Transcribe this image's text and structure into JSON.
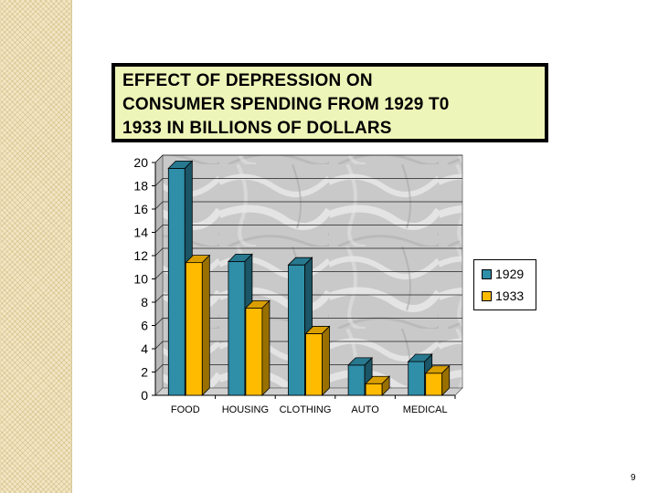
{
  "slide": {
    "page_number": "9"
  },
  "chart_data": {
    "type": "bar",
    "title_lines": [
      "EFFECT OF DEPRESSION ON",
      "CONSUMER SPENDING FROM 1929 T0",
      "1933 IN BILLIONS OF DOLLARS"
    ],
    "categories": [
      "FOOD",
      "HOUSING",
      "CLOTHING",
      "AUTO",
      "MEDICAL"
    ],
    "series": [
      {
        "name": "1929",
        "values": [
          19.5,
          11.5,
          11.2,
          2.6,
          2.9
        ],
        "color": "#2f8ea8"
      },
      {
        "name": "1933",
        "values": [
          11.4,
          7.5,
          5.3,
          1.0,
          1.9
        ],
        "color": "#ffbb00"
      }
    ],
    "ylim": [
      0,
      20
    ],
    "yticks": [
      0,
      2,
      4,
      6,
      8,
      10,
      12,
      14,
      16,
      18,
      20
    ],
    "grid": true,
    "legend_position": "right",
    "style": "3d-bar",
    "background": "marble"
  }
}
